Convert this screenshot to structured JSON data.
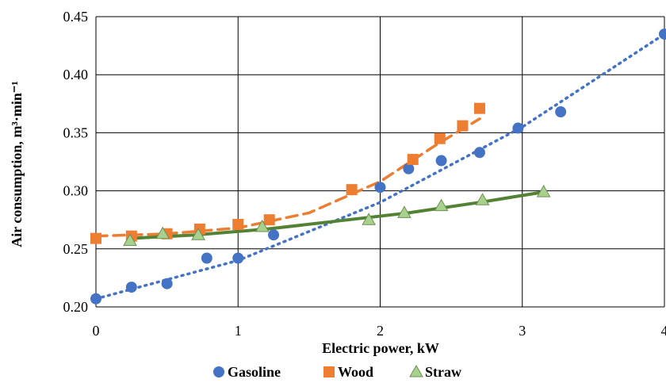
{
  "chart_data": {
    "type": "scatter",
    "xlabel": "Electric power, kW",
    "ylabel": "Air consumption, m³·min⁻¹",
    "xlim": [
      0,
      4
    ],
    "ylim": [
      0.2,
      0.45
    ],
    "x_ticks": [
      "0",
      "1",
      "2",
      "3",
      "4"
    ],
    "y_ticks": [
      "0.20",
      "0.25",
      "0.30",
      "0.35",
      "0.40",
      "0.45"
    ],
    "grid": true,
    "legend_position": "bottom",
    "series": [
      {
        "name": "Gasoline",
        "marker": "circle",
        "color": "#4472C4",
        "trendline": "dotted",
        "points": [
          [
            0.0,
            0.207
          ],
          [
            0.25,
            0.217
          ],
          [
            0.5,
            0.22
          ],
          [
            0.78,
            0.242
          ],
          [
            1.0,
            0.242
          ],
          [
            1.25,
            0.262
          ],
          [
            2.0,
            0.303
          ],
          [
            2.2,
            0.319
          ],
          [
            2.43,
            0.326
          ],
          [
            2.7,
            0.333
          ],
          [
            2.97,
            0.354
          ],
          [
            3.27,
            0.368
          ],
          [
            4.0,
            0.435
          ]
        ],
        "trend": [
          [
            0.0,
            0.207
          ],
          [
            1.0,
            0.24
          ],
          [
            2.0,
            0.29
          ],
          [
            3.0,
            0.355
          ],
          [
            4.0,
            0.435
          ]
        ]
      },
      {
        "name": "Wood",
        "marker": "square",
        "color": "#ED7D31",
        "trendline": "dashed",
        "points": [
          [
            0.0,
            0.259
          ],
          [
            0.25,
            0.261
          ],
          [
            0.5,
            0.263
          ],
          [
            0.73,
            0.267
          ],
          [
            1.0,
            0.271
          ],
          [
            1.22,
            0.275
          ],
          [
            1.8,
            0.301
          ],
          [
            2.23,
            0.327
          ],
          [
            2.42,
            0.345
          ],
          [
            2.58,
            0.356
          ],
          [
            2.7,
            0.371
          ]
        ],
        "trend": [
          [
            0.0,
            0.261
          ],
          [
            0.5,
            0.263
          ],
          [
            1.0,
            0.268
          ],
          [
            1.5,
            0.281
          ],
          [
            2.0,
            0.308
          ],
          [
            2.4,
            0.34
          ],
          [
            2.7,
            0.362
          ]
        ]
      },
      {
        "name": "Straw",
        "marker": "triangle",
        "color": "#A9D18E",
        "trendline": "solid",
        "trend_color": "#548235",
        "points": [
          [
            0.24,
            0.257
          ],
          [
            0.47,
            0.263
          ],
          [
            0.72,
            0.262
          ],
          [
            1.17,
            0.269
          ],
          [
            1.92,
            0.275
          ],
          [
            2.17,
            0.281
          ],
          [
            2.43,
            0.287
          ],
          [
            2.72,
            0.292
          ],
          [
            3.15,
            0.299
          ]
        ],
        "trend": [
          [
            0.24,
            0.259
          ],
          [
            0.7,
            0.262
          ],
          [
            1.2,
            0.267
          ],
          [
            1.7,
            0.274
          ],
          [
            2.2,
            0.281
          ],
          [
            2.7,
            0.29
          ],
          [
            3.15,
            0.299
          ]
        ]
      }
    ]
  }
}
